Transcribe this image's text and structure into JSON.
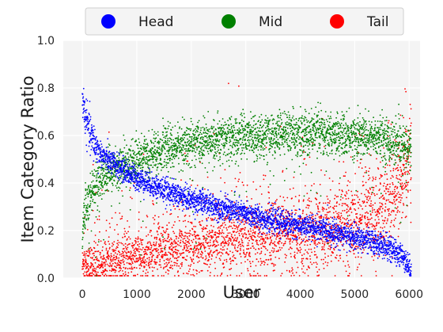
{
  "chart_data": {
    "type": "scatter",
    "xlabel": "User",
    "ylabel": "Item Category Ratio",
    "xlim": [
      -350,
      6200
    ],
    "ylim": [
      0.0,
      1.0
    ],
    "xticks": [
      0,
      1000,
      2000,
      3000,
      4000,
      5000,
      6000
    ],
    "yticks": [
      0.0,
      0.2,
      0.4,
      0.6,
      0.8,
      1.0
    ],
    "xtick_labels": [
      "0",
      "1000",
      "2000",
      "3000",
      "4000",
      "5000",
      "6000"
    ],
    "ytick_labels": [
      "0.0",
      "0.2",
      "0.4",
      "0.6",
      "0.8",
      "1.0"
    ],
    "grid": true,
    "legend_position": "top-center",
    "n_users": 6040,
    "series": [
      {
        "name": "Head",
        "color": "#0000ff",
        "trend_x": [
          0,
          50,
          150,
          300,
          500,
          1000,
          1500,
          2000,
          2500,
          3000,
          3500,
          4000,
          4500,
          5000,
          5500,
          5900,
          6040
        ],
        "trend_y": [
          0.77,
          0.68,
          0.6,
          0.53,
          0.49,
          0.42,
          0.37,
          0.33,
          0.3,
          0.27,
          0.24,
          0.22,
          0.2,
          0.17,
          0.14,
          0.09,
          0.03
        ]
      },
      {
        "name": "Mid",
        "color": "#008000",
        "trend_x": [
          0,
          50,
          150,
          300,
          500,
          1000,
          1500,
          2000,
          2500,
          3000,
          3500,
          4000,
          4500,
          5000,
          5500,
          5900,
          6040
        ],
        "trend_y": [
          0.18,
          0.28,
          0.36,
          0.41,
          0.45,
          0.5,
          0.54,
          0.57,
          0.58,
          0.6,
          0.6,
          0.61,
          0.61,
          0.6,
          0.59,
          0.55,
          0.55
        ]
      },
      {
        "name": "Tail",
        "color": "#ff0000",
        "trend_x": [
          0,
          50,
          150,
          300,
          500,
          1000,
          1500,
          2000,
          2500,
          3000,
          3500,
          4000,
          4500,
          5000,
          5500,
          5900,
          6040
        ],
        "trend_y": [
          0.05,
          0.05,
          0.05,
          0.06,
          0.07,
          0.09,
          0.11,
          0.13,
          0.15,
          0.16,
          0.17,
          0.18,
          0.2,
          0.22,
          0.28,
          0.4,
          0.55
        ]
      }
    ]
  }
}
